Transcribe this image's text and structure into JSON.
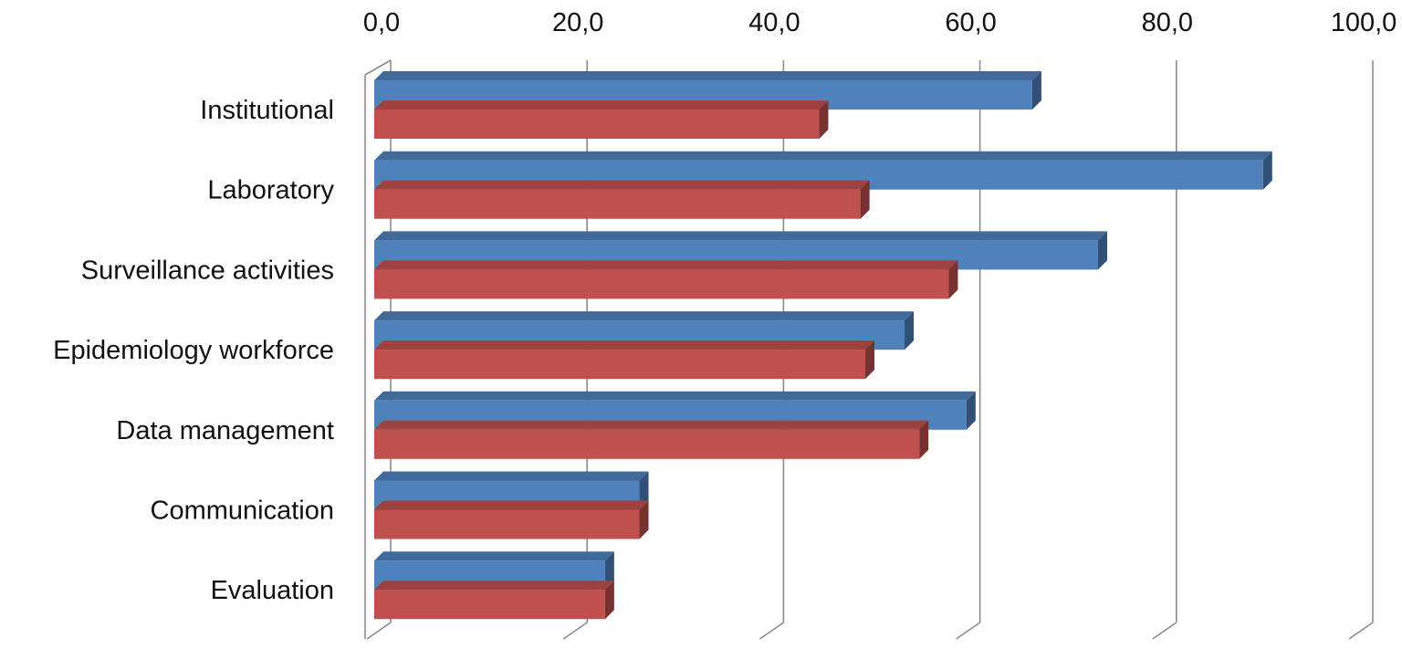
{
  "chart_data": {
    "type": "bar",
    "orientation": "horizontal",
    "style": "3d",
    "categories": [
      "Institutional",
      "Laboratory",
      "Surveillance activities",
      "Epidemiology workforce",
      "Data management",
      "Communication",
      "Evaluation"
    ],
    "series": [
      {
        "values": [
          67.0,
          90.5,
          73.7,
          54.0,
          60.3,
          27.0,
          23.5
        ],
        "color": "#4F81BD"
      },
      {
        "values": [
          45.3,
          49.5,
          58.5,
          50.0,
          55.5,
          27.0,
          23.5
        ],
        "color": "#C0504D"
      }
    ],
    "xlim": [
      0,
      100
    ],
    "x_ticks": [
      "0,0",
      "20,0",
      "40,0",
      "60,0",
      "80,0",
      "100,0"
    ],
    "x_tick_values": [
      0,
      20,
      40,
      60,
      80,
      100
    ],
    "x_axis_position": "top",
    "grid": true,
    "legend": "none",
    "title": "",
    "xlabel": "",
    "ylabel": ""
  }
}
